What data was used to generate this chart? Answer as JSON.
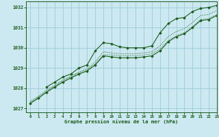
{
  "title": "Graphe pression niveau de la mer (hPa)",
  "bg_color": "#cce8f0",
  "grid_color": "#99ccd9",
  "line_color": "#1a5c1a",
  "xlim": [
    -0.5,
    23
  ],
  "ylim": [
    1026.8,
    1032.3
  ],
  "xticks": [
    0,
    1,
    2,
    3,
    4,
    5,
    6,
    7,
    8,
    9,
    10,
    11,
    12,
    13,
    14,
    15,
    16,
    17,
    18,
    19,
    20,
    21,
    22,
    23
  ],
  "yticks": [
    1027,
    1028,
    1029,
    1030,
    1031,
    1032
  ],
  "series_dotted": {
    "x": [
      0,
      1,
      2,
      3,
      4,
      5,
      6,
      7,
      8,
      9,
      10,
      11,
      12,
      13,
      14,
      15,
      16,
      17,
      18,
      19,
      20,
      21,
      22,
      23
    ],
    "y": [
      1027.3,
      1027.55,
      1027.85,
      1028.1,
      1028.35,
      1028.55,
      1028.75,
      1028.9,
      1029.2,
      1029.65,
      1029.65,
      1029.6,
      1029.6,
      1029.6,
      1029.65,
      1029.7,
      1029.95,
      1030.35,
      1030.6,
      1030.75,
      1031.05,
      1031.4,
      1031.45,
      1031.65
    ]
  },
  "series_dotted2": {
    "x": [
      0,
      1,
      2,
      3,
      4,
      5,
      6,
      7,
      8,
      9,
      10,
      11,
      12,
      13,
      14,
      15,
      16,
      17,
      18,
      19,
      20,
      21,
      22,
      23
    ],
    "y": [
      1027.35,
      1027.6,
      1027.9,
      1028.15,
      1028.4,
      1028.6,
      1028.8,
      1028.95,
      1029.3,
      1029.8,
      1029.75,
      1029.7,
      1029.7,
      1029.7,
      1029.75,
      1029.8,
      1030.1,
      1030.55,
      1030.8,
      1030.95,
      1031.25,
      1031.6,
      1031.65,
      1031.85
    ]
  },
  "series_main1": {
    "x": [
      0,
      1,
      2,
      3,
      4,
      5,
      6,
      7,
      8,
      9,
      10,
      11,
      12,
      13,
      14,
      15,
      16,
      17,
      18,
      19,
      20,
      21,
      22,
      23
    ],
    "y": [
      1027.25,
      1027.5,
      1027.8,
      1028.05,
      1028.3,
      1028.5,
      1028.7,
      1028.85,
      1029.15,
      1029.6,
      1029.55,
      1029.5,
      1029.5,
      1029.5,
      1029.55,
      1029.6,
      1029.85,
      1030.3,
      1030.55,
      1030.7,
      1031.0,
      1031.35,
      1031.4,
      1031.6
    ]
  },
  "series_main2": {
    "x": [
      2,
      3,
      4,
      5,
      6,
      7,
      8,
      9,
      10,
      11,
      12,
      13,
      14,
      15,
      16,
      17,
      18,
      19,
      20,
      21,
      22,
      23
    ],
    "y": [
      1028.05,
      1028.3,
      1028.55,
      1028.7,
      1029.0,
      1029.15,
      1029.85,
      1030.25,
      1030.2,
      1030.05,
      1030.0,
      1030.0,
      1030.0,
      1030.1,
      1030.75,
      1031.2,
      1031.45,
      1031.5,
      1031.8,
      1031.95,
      1032.0,
      1032.1
    ]
  }
}
